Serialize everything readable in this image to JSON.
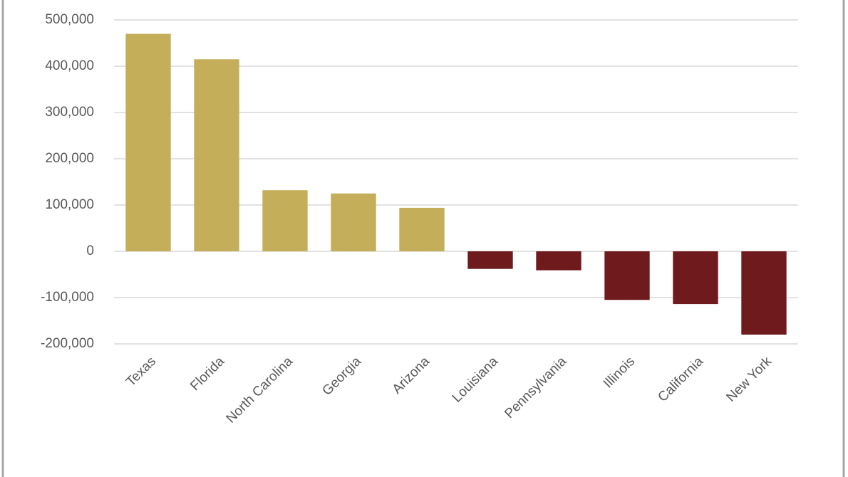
{
  "chart_data": {
    "type": "bar",
    "categories": [
      "Texas",
      "Florida",
      "North Carolina",
      "Georgia",
      "Arizona",
      "Louisiana",
      "Pennsylvania",
      "Illinois",
      "California",
      "New York"
    ],
    "values": [
      470000,
      415000,
      132000,
      125000,
      94000,
      -38000,
      -41000,
      -105000,
      -114000,
      -180000
    ],
    "colors": [
      "#c4ae5a",
      "#c4ae5a",
      "#c4ae5a",
      "#c4ae5a",
      "#c4ae5a",
      "#6f1a1d",
      "#6f1a1d",
      "#6f1a1d",
      "#6f1a1d",
      "#6f1a1d"
    ],
    "ylim": [
      -200000,
      500000
    ],
    "yticks": [
      {
        "value": -200000,
        "label": "-200,000"
      },
      {
        "value": -100000,
        "label": "-100,000"
      },
      0,
      {
        "value": 100000,
        "label": "100,000"
      },
      {
        "value": 200000,
        "label": "200,000"
      },
      {
        "value": 300000,
        "label": "300,000"
      },
      {
        "value": 400000,
        "label": "400,000"
      },
      {
        "value": 500000,
        "label": "500,000"
      }
    ],
    "grid": true
  }
}
